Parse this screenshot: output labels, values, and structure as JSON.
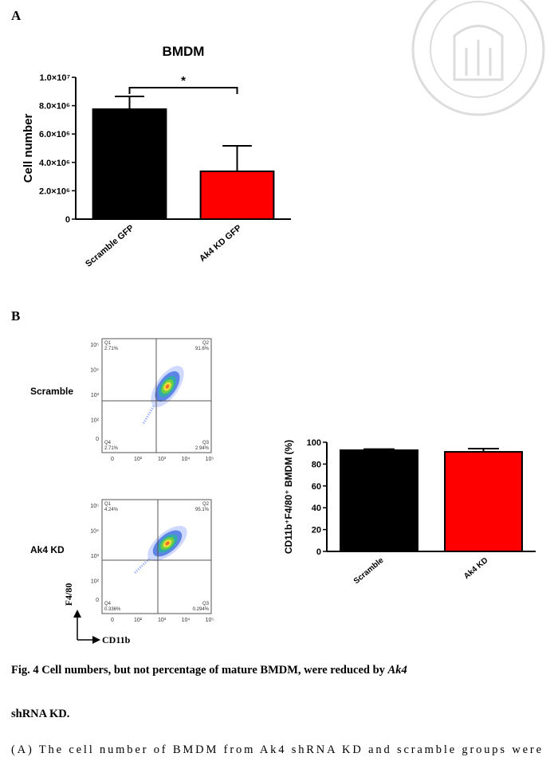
{
  "panels": [
    {
      "label": "A"
    },
    {
      "label": "B"
    }
  ],
  "chart_data": [
    {
      "type": "bar",
      "title": "BMDM",
      "y_label": "Cell number",
      "categories": [
        "Scramble GFP",
        "Ak4 KD GFP"
      ],
      "values": [
        7750000,
        3370000
      ],
      "errors": [
        900000,
        1800000
      ],
      "colors": [
        "#000000",
        "#ff0000"
      ],
      "ylim": [
        0,
        10000000
      ],
      "yticks": [
        0,
        {
          "value": 2000000,
          "label": "2.0×10⁶"
        },
        {
          "value": 4000000,
          "label": "4.0×10⁶"
        },
        {
          "value": 6000000,
          "label": "6.0×10⁶"
        },
        {
          "value": 8000000,
          "label": "8.0×10⁶"
        },
        {
          "value": 10000000,
          "label": "1.0×10⁷"
        }
      ],
      "significance": "*"
    },
    {
      "type": "bar",
      "y_label": "CD11b⁺F4/80⁺ BMDM (%)",
      "categories": [
        "Scramble",
        "Ak4 KD"
      ],
      "values": [
        92.7,
        91.2
      ],
      "errors": [
        1.0,
        3.0
      ],
      "colors": [
        "#000000",
        "#ff0000"
      ],
      "ylim": [
        0,
        100
      ],
      "yticks": [
        0,
        20,
        40,
        60,
        80,
        100
      ]
    }
  ],
  "flow": {
    "x_label": "CD11b",
    "y_label": "F4/80",
    "xticks": [
      "0",
      "10²",
      "10³",
      "10⁴",
      "10⁵"
    ],
    "yticks": [
      "10⁵",
      "10⁴",
      "10³",
      "10²",
      "0"
    ],
    "plots": [
      {
        "sample": "Scramble",
        "quadrants": [
          {
            "name": "Q1",
            "percent": "2.71%"
          },
          {
            "name": "Q2",
            "percent": "91.6%"
          },
          {
            "name": "Q3",
            "percent": "2.94%"
          },
          {
            "name": "Q4",
            "percent": "2.71%"
          }
        ]
      },
      {
        "sample": "Ak4 KD",
        "quadrants": [
          {
            "name": "Q1",
            "percent": "4.24%"
          },
          {
            "name": "Q2",
            "percent": "95.1%"
          },
          {
            "name": "Q3",
            "percent": "0.294%"
          },
          {
            "name": "Q4",
            "percent": "0.336%"
          }
        ]
      }
    ]
  },
  "caption": {
    "title_parts": [
      "Fig. 4 Cell numbers, but not percentage of mature BMDM, were reduced by ",
      "Ak4",
      "shRNA KD."
    ],
    "body": "(A) The cell number of BMDM from Ak4 shRNA KD and scramble groups were"
  }
}
